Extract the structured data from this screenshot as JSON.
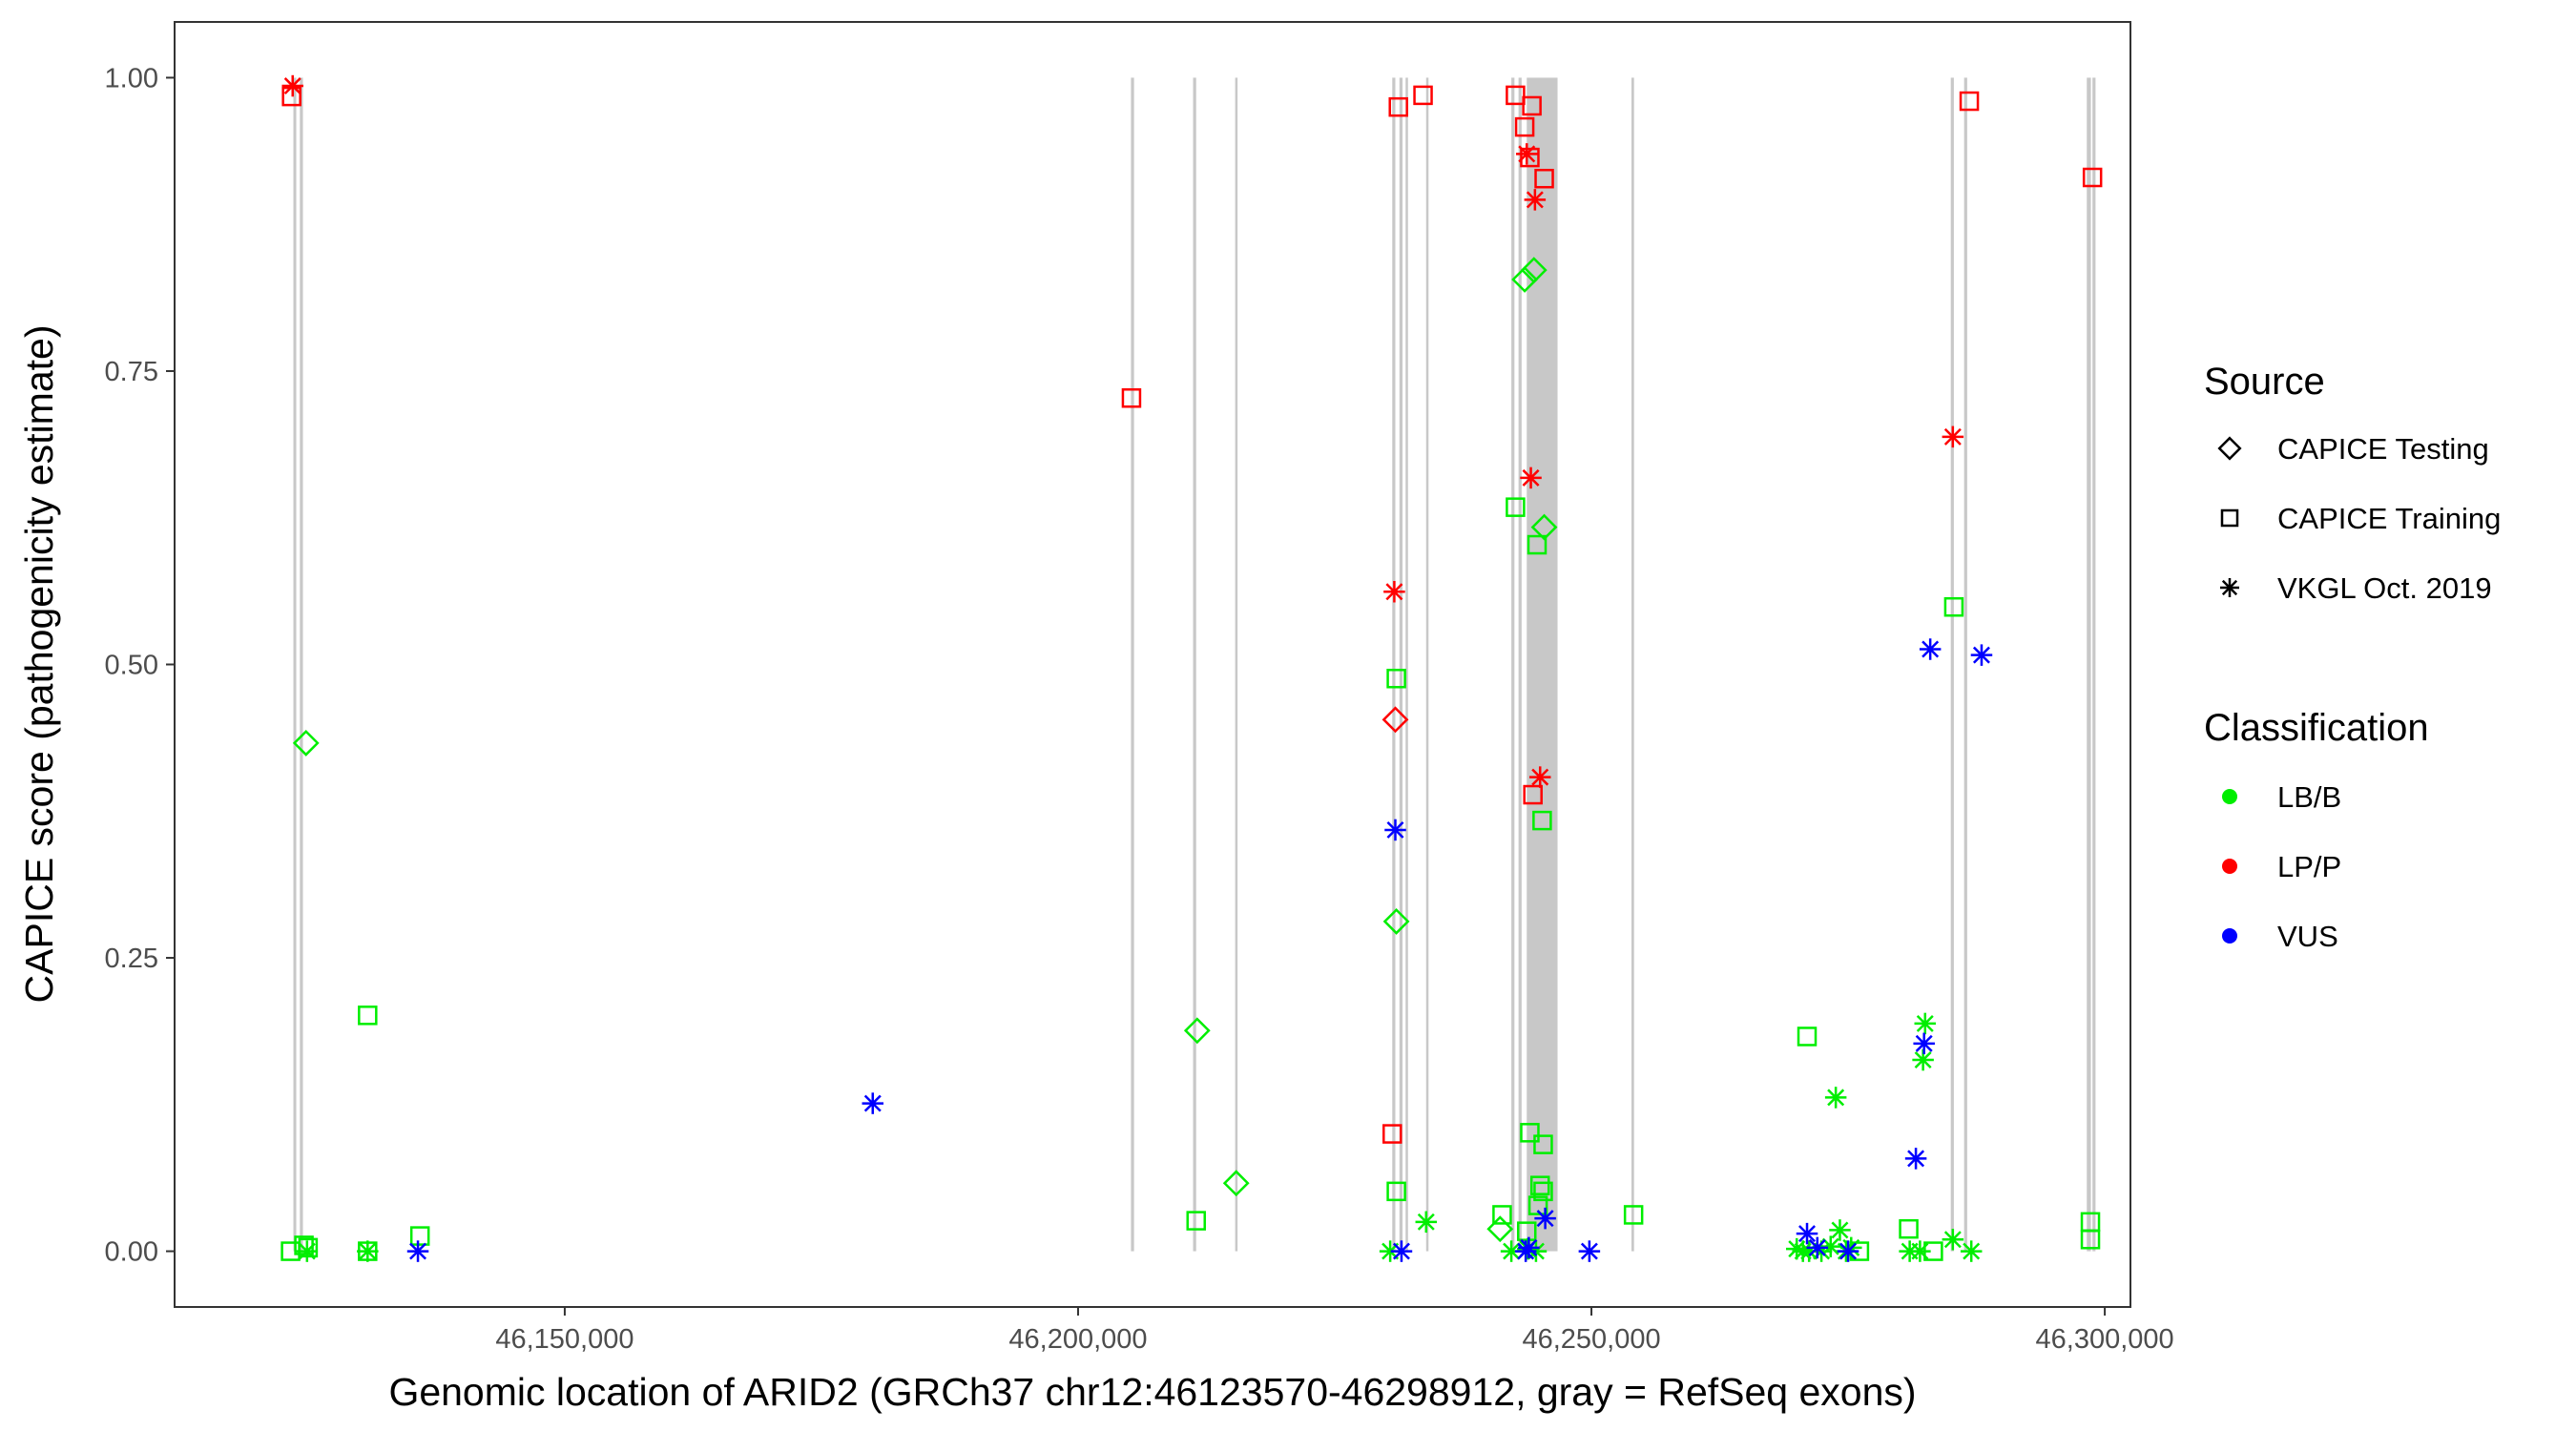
{
  "chart_data": {
    "type": "scatter",
    "xlabel": "Genomic location of ARID2 (GRCh37 chr12:46123570-46298912, gray = RefSeq exons)",
    "ylabel": "CAPICE score (pathogenicity estimate)",
    "xlim": [
      46112000,
      46302500
    ],
    "ylim": [
      -0.0475,
      1.0475
    ],
    "x_ticks": [
      46150000,
      46200000,
      46250000,
      46300000
    ],
    "x_tick_labels": [
      "46,150,000",
      "46,200,000",
      "46,250,000",
      "46,300,000"
    ],
    "y_ticks": [
      0,
      0.25,
      0.5,
      0.75,
      1.0
    ],
    "y_tick_labels": [
      "0.00",
      "0.25",
      "0.50",
      "0.75",
      "1.00"
    ],
    "grid": false,
    "legend_position": "right",
    "legend": {
      "source_title": "Source",
      "source_entries": [
        {
          "label": "CAPICE Testing",
          "shape": "diamond"
        },
        {
          "label": "CAPICE Training",
          "shape": "square"
        },
        {
          "label": "VKGL Oct. 2019",
          "shape": "asterisk"
        }
      ],
      "class_title": "Classification",
      "class_entries": [
        {
          "label": "LB/B",
          "color": "#00ee00"
        },
        {
          "label": "LP/P",
          "color": "#ff0000"
        },
        {
          "label": "VUS",
          "color": "#0000ff"
        }
      ]
    },
    "exon_color": "#c8c8c8",
    "exons": [
      [
        46123570,
        46123850
      ],
      [
        46124200,
        46124500
      ],
      [
        46205150,
        46205450
      ],
      [
        46211200,
        46211500
      ],
      [
        46215300,
        46215500
      ],
      [
        46230600,
        46230900
      ],
      [
        46231300,
        46231600
      ],
      [
        46231900,
        46232100
      ],
      [
        46233900,
        46234100
      ],
      [
        46242200,
        46242500
      ],
      [
        46242900,
        46243200
      ],
      [
        46243700,
        46246700
      ],
      [
        46253900,
        46254150
      ],
      [
        46285000,
        46285300
      ],
      [
        46286300,
        46286600
      ],
      [
        46298250,
        46298650
      ],
      [
        46298800,
        46299100
      ]
    ],
    "series": [
      {
        "source": "CAPICE Testing",
        "classification": "LB/B",
        "points": [
          [
            46124800,
            0.433
          ],
          [
            46211600,
            0.188
          ],
          [
            46215400,
            0.058
          ],
          [
            46231000,
            0.281
          ],
          [
            46243500,
            0.828
          ],
          [
            46244400,
            0.836
          ],
          [
            46245400,
            0.617
          ],
          [
            46241100,
            0.019
          ]
        ]
      },
      {
        "source": "CAPICE Testing",
        "classification": "LP/P",
        "points": [
          [
            46230900,
            0.453
          ]
        ]
      },
      {
        "source": "CAPICE Training",
        "classification": "LB/B",
        "points": [
          [
            46123300,
            0.0
          ],
          [
            46124600,
            0.005
          ],
          [
            46125000,
            0.003
          ],
          [
            46130800,
            0.201
          ],
          [
            46130800,
            0.0
          ],
          [
            46135900,
            0.013
          ],
          [
            46211500,
            0.026
          ],
          [
            46231000,
            0.488
          ],
          [
            46231000,
            0.051
          ],
          [
            46241300,
            0.031
          ],
          [
            46242600,
            0.634
          ],
          [
            46243700,
            0.017
          ],
          [
            46244000,
            0.101
          ],
          [
            46244700,
            0.602
          ],
          [
            46245300,
            0.091
          ],
          [
            46245200,
            0.367
          ],
          [
            46245000,
            0.056
          ],
          [
            46245300,
            0.051
          ],
          [
            46244800,
            0.039
          ],
          [
            46254100,
            0.031
          ],
          [
            46271000,
            0.183
          ],
          [
            46280900,
            0.019
          ],
          [
            46285300,
            0.549
          ],
          [
            46298600,
            0.025
          ],
          [
            46298600,
            0.01
          ],
          [
            46283300,
            0.0
          ],
          [
            46276100,
            0.0
          ]
        ]
      },
      {
        "source": "CAPICE Training",
        "classification": "LP/P",
        "points": [
          [
            46123400,
            0.984
          ],
          [
            46205200,
            0.727
          ],
          [
            46230600,
            0.1
          ],
          [
            46231200,
            0.975
          ],
          [
            46233600,
            0.985
          ],
          [
            46242600,
            0.985
          ],
          [
            46243500,
            0.958
          ],
          [
            46244200,
            0.976
          ],
          [
            46244000,
            0.932
          ],
          [
            46245400,
            0.914
          ],
          [
            46244300,
            0.389
          ],
          [
            46286800,
            0.98
          ],
          [
            46298800,
            0.915
          ]
        ]
      },
      {
        "source": "VKGL Oct. 2019",
        "classification": "LB/B",
        "points": [
          [
            46124900,
            0.0
          ],
          [
            46130800,
            0.0
          ],
          [
            46230400,
            0.0
          ],
          [
            46233900,
            0.025
          ],
          [
            46242200,
            0.0
          ],
          [
            46243800,
            0.002
          ],
          [
            46244600,
            0.0
          ],
          [
            46270000,
            0.002
          ],
          [
            46271200,
            0.0
          ],
          [
            46272400,
            0.0
          ],
          [
            46273300,
            0.004
          ],
          [
            46273800,
            0.131
          ],
          [
            46274200,
            0.018
          ],
          [
            46274800,
            0.0
          ],
          [
            46275300,
            0.003
          ],
          [
            46282000,
            0.0
          ],
          [
            46282500,
            0.194
          ],
          [
            46282300,
            0.163
          ],
          [
            46285200,
            0.01
          ],
          [
            46287000,
            0.0
          ],
          [
            46270600,
            0.0
          ],
          [
            46281000,
            0.0
          ]
        ]
      },
      {
        "source": "VKGL Oct. 2019",
        "classification": "LP/P",
        "points": [
          [
            46123500,
            0.993
          ],
          [
            46230800,
            0.562
          ],
          [
            46243700,
            0.935
          ],
          [
            46244100,
            0.659
          ],
          [
            46244500,
            0.896
          ],
          [
            46245000,
            0.404
          ],
          [
            46285200,
            0.694
          ]
        ]
      },
      {
        "source": "VKGL Oct. 2019",
        "classification": "VUS",
        "points": [
          [
            46135700,
            0.0
          ],
          [
            46180000,
            0.126
          ],
          [
            46230900,
            0.359
          ],
          [
            46231500,
            0.0
          ],
          [
            46243600,
            0.0
          ],
          [
            46243900,
            0.003
          ],
          [
            46245500,
            0.028
          ],
          [
            46249800,
            0.0
          ],
          [
            46271000,
            0.015
          ],
          [
            46272000,
            0.003
          ],
          [
            46275000,
            0.0
          ],
          [
            46281600,
            0.079
          ],
          [
            46282400,
            0.177
          ],
          [
            46283000,
            0.513
          ],
          [
            46288000,
            0.508
          ]
        ]
      }
    ]
  }
}
